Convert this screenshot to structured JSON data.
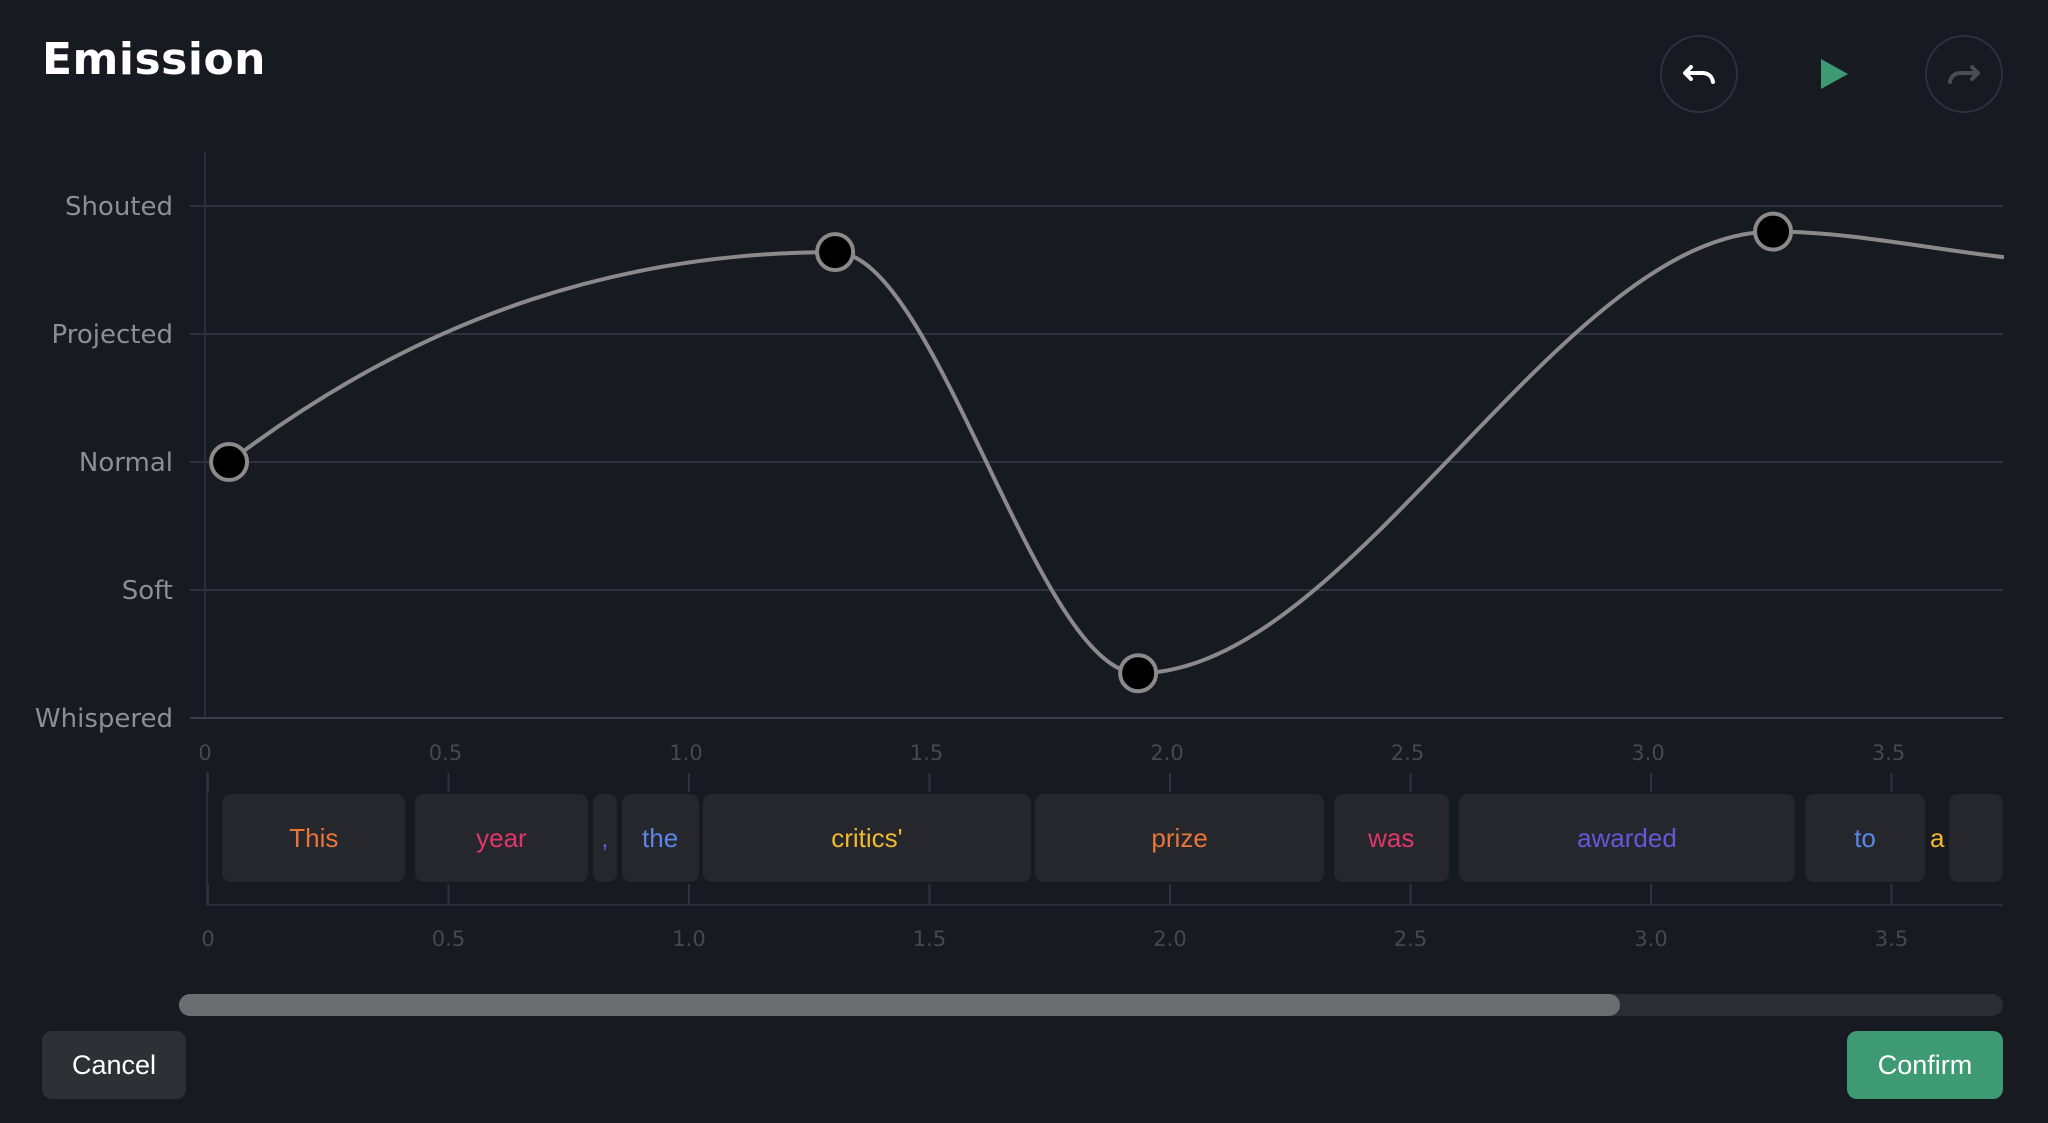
{
  "dialog": {
    "title": "Emission"
  },
  "toolbar": {
    "undo_icon": "undo-icon",
    "play_icon": "play-icon",
    "redo_icon": "redo-icon",
    "play_color": "#3e9a73"
  },
  "chart_data": {
    "type": "line",
    "y_categories": [
      "Whispered",
      "Soft",
      "Normal",
      "Projected",
      "Shouted"
    ],
    "x_ticks": [
      "0",
      "0.5",
      "1.0",
      "1.5",
      "2.0",
      "2.5",
      "3.0",
      "3.5"
    ],
    "xlim": [
      0,
      3.74
    ],
    "points": [
      {
        "x": 0.05,
        "y": 2.0
      },
      {
        "x": 1.31,
        "y": 3.64
      },
      {
        "x": 1.94,
        "y": 0.35
      },
      {
        "x": 3.26,
        "y": 3.8
      }
    ],
    "tail_end": {
      "x": 3.74,
      "y": 3.6
    },
    "grid": true,
    "line_color": "#8a8a8a"
  },
  "timeline": {
    "x_ticks": [
      "0",
      "0.5",
      "1.0",
      "1.5",
      "2.0",
      "2.5",
      "3.0",
      "3.5"
    ],
    "words": [
      {
        "text": "This",
        "start": 0.03,
        "end": 0.41,
        "color": "#e8753a"
      },
      {
        "text": "year",
        "start": 0.43,
        "end": 0.79,
        "color": "#e0366a"
      },
      {
        "text": ",",
        "start": 0.8,
        "end": 0.85,
        "color": "#6a55d8"
      },
      {
        "text": "the",
        "start": 0.86,
        "end": 1.02,
        "color": "#5b86e8"
      },
      {
        "text": "critics'",
        "start": 1.03,
        "end": 1.71,
        "color": "#f2b92d"
      },
      {
        "text": "prize",
        "start": 1.72,
        "end": 2.32,
        "color": "#e8753a"
      },
      {
        "text": "was",
        "start": 2.34,
        "end": 2.58,
        "color": "#e0366a"
      },
      {
        "text": "awarded",
        "start": 2.6,
        "end": 3.3,
        "color": "#6a55d8"
      },
      {
        "text": "to",
        "start": 3.32,
        "end": 3.57,
        "color": "#5b86e8"
      },
      {
        "text": "a",
        "start": 3.58,
        "end": 3.61,
        "color": "#f2b92d"
      },
      {
        "text": "",
        "start": 3.62,
        "end": 3.74,
        "color": "#e8753a"
      }
    ]
  },
  "scrollbar": {
    "position_fraction": 0.79
  },
  "footer": {
    "cancel_label": "Cancel",
    "confirm_label": "Confirm"
  }
}
